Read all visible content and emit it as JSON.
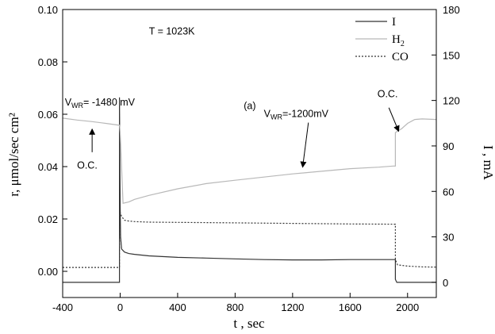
{
  "chart_data": {
    "type": "line",
    "title": "",
    "xlabel": "t , sec",
    "ylabel_left": "r, μmol/sec cm²",
    "ylabel_right": "I , mA",
    "xlim": [
      -400,
      2200
    ],
    "ylim_left": [
      -0.01,
      0.1
    ],
    "ylim_right": [
      -10,
      180
    ],
    "x_ticks": [
      "-400",
      "0",
      "400",
      "800",
      "1200",
      "1600",
      "2000"
    ],
    "y_left_ticks": [
      "0.00",
      "0.02",
      "0.04",
      "0.06",
      "0.08",
      "0.10"
    ],
    "y_right_ticks": [
      "0",
      "30",
      "60",
      "90",
      "120",
      "150",
      "180"
    ],
    "grid": false,
    "legend_position": "top-right",
    "series": [
      {
        "name": "I",
        "axis": "right",
        "style": "solid",
        "color": "#333333",
        "x": [
          -400,
          -5,
          -5,
          0,
          3,
          10,
          30,
          60,
          100,
          200,
          400,
          600,
          800,
          1000,
          1200,
          1400,
          1600,
          1800,
          1915,
          1915,
          1925,
          2200
        ],
        "y": [
          0,
          0,
          122,
          50,
          30,
          22,
          20,
          19,
          18.5,
          17.5,
          16.5,
          16,
          15.5,
          15,
          14.8,
          14.8,
          15,
          15,
          15,
          2,
          0,
          0
        ]
      },
      {
        "name": "H2",
        "axis": "left",
        "style": "solid",
        "color": "#b8b8b8",
        "x": [
          -400,
          -300,
          -200,
          -100,
          -5,
          -5,
          0,
          20,
          60,
          100,
          200,
          400,
          600,
          800,
          1000,
          1200,
          1400,
          1600,
          1800,
          1900,
          1915,
          1915,
          1930,
          1960,
          2000,
          2050,
          2100,
          2200
        ],
        "y": [
          0.0585,
          0.0578,
          0.0572,
          0.0565,
          0.0558,
          0.056,
          0.053,
          0.026,
          0.0265,
          0.0275,
          0.029,
          0.0315,
          0.0335,
          0.0348,
          0.036,
          0.0372,
          0.0382,
          0.0392,
          0.0398,
          0.0402,
          0.0402,
          0.053,
          0.0535,
          0.0545,
          0.0565,
          0.058,
          0.0582,
          0.058
        ]
      },
      {
        "name": "CO",
        "axis": "left",
        "style": "dotted",
        "color": "#333333",
        "x": [
          -400,
          -200,
          -5,
          -5,
          0,
          10,
          30,
          60,
          100,
          200,
          400,
          800,
          1200,
          1600,
          1910,
          1915,
          1915,
          1930,
          2000,
          2100,
          2200
        ],
        "y": [
          0.0015,
          0.0015,
          0.0015,
          0.02,
          0.0225,
          0.021,
          0.0195,
          0.0192,
          0.019,
          0.0188,
          0.0187,
          0.0185,
          0.0183,
          0.0181,
          0.018,
          0.018,
          0.0045,
          0.0025,
          0.002,
          0.0017,
          0.0016
        ]
      }
    ],
    "annotations": [
      {
        "text": "T = 1023K",
        "kind": "plain",
        "x": 200,
        "y": 0.0905
      },
      {
        "text": "(a)",
        "kind": "plain",
        "x": 860,
        "y": 0.062
      },
      {
        "main": "V",
        "sub": "WR",
        "rest": "= -1480 mV",
        "kind": "sub",
        "x": -385,
        "y": 0.0633
      },
      {
        "main": "V",
        "sub": "WR",
        "rest": "=-1200mV",
        "kind": "sub",
        "x": 1000,
        "y": 0.059
      },
      {
        "text": "O.C.",
        "kind": "plain",
        "x": -300,
        "y": 0.0392
      },
      {
        "text": "O.C.",
        "kind": "plain",
        "x": 1790,
        "y": 0.0665
      }
    ],
    "arrows": [
      {
        "from": [
          -195,
          0.0455
        ],
        "to": [
          -195,
          0.0543
        ]
      },
      {
        "from": [
          1310,
          0.0568
        ],
        "to": [
          1270,
          0.0398
        ]
      },
      {
        "from": [
          1870,
          0.0625
        ],
        "to": [
          1938,
          0.0535
        ]
      }
    ]
  }
}
